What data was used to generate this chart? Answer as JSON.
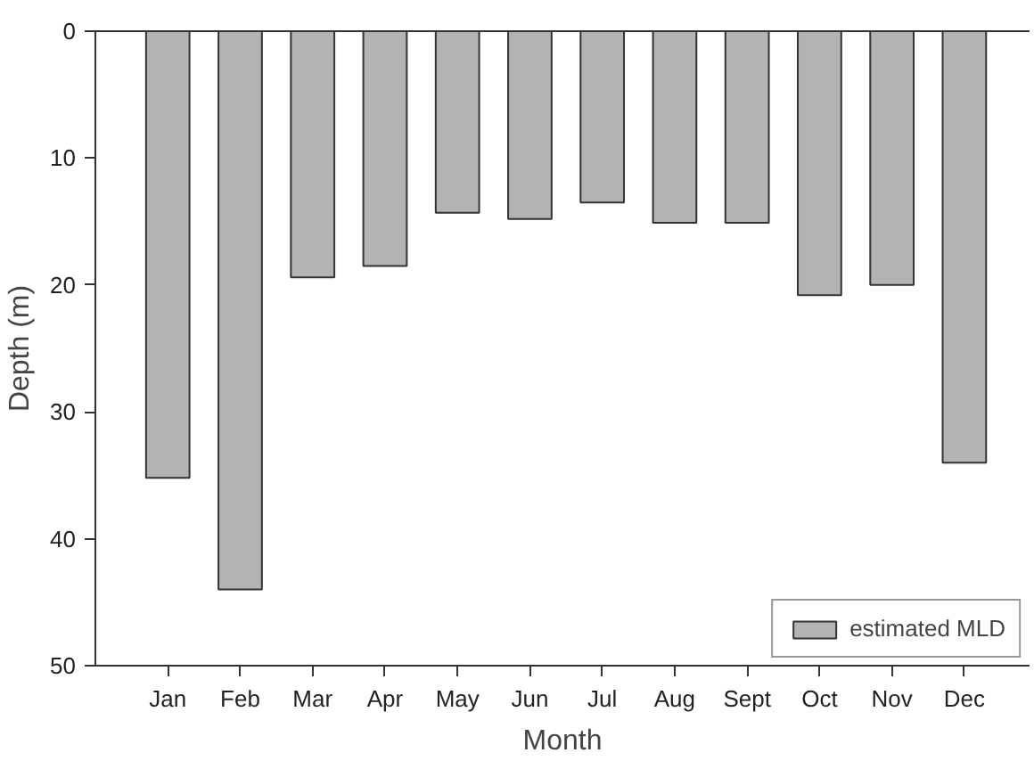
{
  "chart_data": {
    "type": "bar",
    "xlabel": "Month",
    "ylabel": "Depth (m)",
    "categories": [
      "Jan",
      "Feb",
      "Mar",
      "Apr",
      "May",
      "Jun",
      "Jul",
      "Aug",
      "Sept",
      "Oct",
      "Nov",
      "Dec"
    ],
    "series": [
      {
        "name": "estimated MLD",
        "color": "#b3b3b3",
        "values": [
          35.2,
          44.0,
          19.4,
          18.5,
          14.3,
          14.8,
          13.5,
          15.1,
          15.1,
          20.8,
          20.0,
          34.0
        ]
      }
    ],
    "ylim": [
      50,
      0
    ],
    "yticks": [
      0,
      10,
      20,
      30,
      40,
      50
    ],
    "grid": false,
    "legend": "bottom right"
  }
}
